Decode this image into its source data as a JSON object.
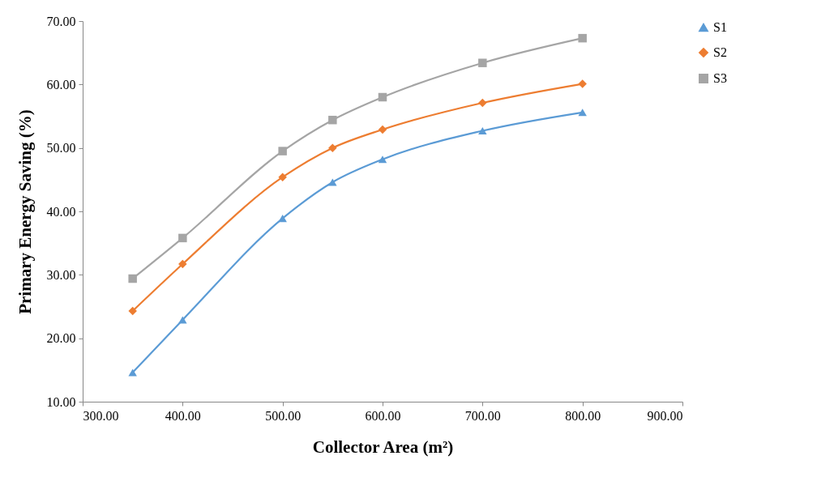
{
  "chart_data": {
    "type": "line",
    "xlabel": "Collector Area (m²)",
    "ylabel": "Primary Energy Saving (%)",
    "x": [
      350,
      400,
      500,
      550,
      600,
      700,
      800
    ],
    "series": [
      {
        "name": "S1",
        "color": "#5b9bd5",
        "marker": "triangle",
        "values": [
          14.6,
          22.9,
          38.9,
          44.6,
          48.2,
          52.7,
          55.6
        ]
      },
      {
        "name": "S2",
        "color": "#ed7d31",
        "marker": "diamond",
        "values": [
          24.3,
          31.7,
          45.4,
          50.0,
          52.9,
          57.1,
          60.1
        ]
      },
      {
        "name": "S3",
        "color": "#a5a5a5",
        "marker": "square",
        "values": [
          29.4,
          35.8,
          49.5,
          54.4,
          58.0,
          63.4,
          67.3
        ]
      }
    ],
    "xlim": [
      300,
      900
    ],
    "ylim": [
      10,
      70
    ],
    "xticks": [
      {
        "value": 300,
        "label": "300.00"
      },
      {
        "value": 400,
        "label": "400.00"
      },
      {
        "value": 500,
        "label": "500.00"
      },
      {
        "value": 600,
        "label": "600.00"
      },
      {
        "value": 700,
        "label": "700.00"
      },
      {
        "value": 800,
        "label": "800.00"
      },
      {
        "value": 900,
        "label": "900.00"
      }
    ],
    "yticks": [
      {
        "value": 10,
        "label": "10.00"
      },
      {
        "value": 20,
        "label": "20.00"
      },
      {
        "value": 30,
        "label": "30.00"
      },
      {
        "value": 40,
        "label": "40.00"
      },
      {
        "value": 50,
        "label": "50.00"
      },
      {
        "value": 60,
        "label": "60.00"
      },
      {
        "value": 70,
        "label": "70.00"
      }
    ],
    "grid": false,
    "legend": "right"
  }
}
